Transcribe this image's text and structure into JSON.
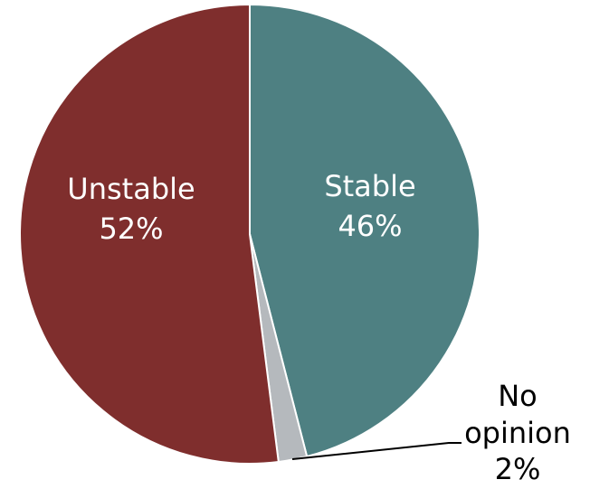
{
  "chart_data": {
    "type": "pie",
    "title": "",
    "slices": [
      {
        "name": "Stable",
        "value": 46,
        "label": "46%",
        "color": "#4e8082"
      },
      {
        "name": "No opinion",
        "value": 2,
        "label": "2%",
        "color": "#b5b9bd"
      },
      {
        "name": "Unstable",
        "value": 52,
        "label": "52%",
        "color": "#7f2e2d"
      }
    ],
    "start_angle": "12 o'clock",
    "direction": "clockwise",
    "legend": "none"
  }
}
